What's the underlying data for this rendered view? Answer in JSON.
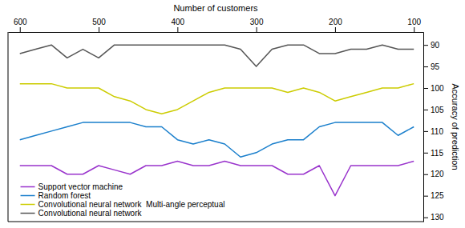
{
  "chart_data": {
    "type": "line",
    "xlabel": "Number of customers",
    "ylabel": "Accuracy of prediction",
    "x": [
      600,
      580,
      560,
      540,
      520,
      500,
      480,
      460,
      440,
      420,
      400,
      380,
      360,
      340,
      320,
      300,
      280,
      260,
      240,
      220,
      200,
      180,
      160,
      140,
      120,
      100
    ],
    "xlim": [
      615,
      88
    ],
    "ylim": [
      131,
      87
    ],
    "xticks": [
      600,
      500,
      400,
      300,
      200,
      100
    ],
    "yticks": [
      90,
      95,
      100,
      105,
      110,
      115,
      120,
      125,
      130
    ],
    "grid": false,
    "legend": "lower left",
    "series": [
      {
        "name": "Support vector machine",
        "color": "#9933cc",
        "values": [
          118,
          118,
          118,
          120,
          120,
          118,
          119,
          120,
          118,
          118,
          117,
          118,
          118,
          117,
          118,
          118,
          118,
          120,
          120,
          118,
          125,
          118,
          118,
          118,
          118,
          117
        ]
      },
      {
        "name": "Random forest",
        "color": "#1a7fcc",
        "values": [
          112,
          111,
          110,
          109,
          108,
          108,
          108,
          108,
          109,
          109,
          112,
          113,
          112,
          113,
          116,
          115,
          113,
          112,
          112,
          109,
          108,
          108,
          108,
          108,
          111,
          109
        ]
      },
      {
        "name": "Convolutional neural network  Multi-angle perceptual",
        "color": "#cccc00",
        "values": [
          99,
          99,
          99,
          100,
          100,
          100,
          102,
          103,
          105,
          106,
          105,
          103,
          101,
          100,
          100,
          100,
          100,
          101,
          100,
          101,
          103,
          102,
          101,
          100,
          100,
          99
        ]
      },
      {
        "name": "Convolutional neural network",
        "color": "#555555",
        "values": [
          92,
          91,
          90,
          93,
          91,
          93,
          90,
          90,
          90,
          90,
          90,
          90,
          90,
          90,
          91,
          95,
          91,
          90,
          90,
          92,
          92,
          91,
          91,
          90,
          91,
          91
        ]
      }
    ]
  }
}
